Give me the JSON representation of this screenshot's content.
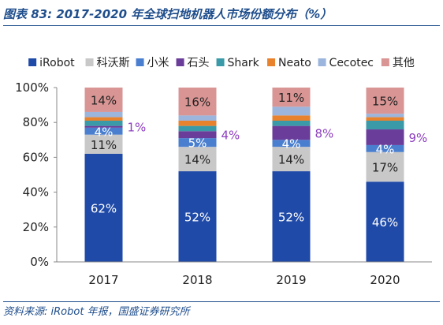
{
  "header": {
    "title": "图表 83:  2017-2020 年全球扫地机器人市场份额分布（%）"
  },
  "footer": {
    "source": "资料来源:  iRobot 年报，国盛证券研究所"
  },
  "chart_data": {
    "type": "bar",
    "stacked": true,
    "categories": [
      "2017",
      "2018",
      "2019",
      "2020"
    ],
    "ylim": [
      0,
      100
    ],
    "y_ticks": [
      "0%",
      "20%",
      "40%",
      "60%",
      "80%",
      "100%"
    ],
    "legend_position": "top",
    "series": [
      {
        "name": "iRobot",
        "color": "#1f4aa8",
        "values": [
          62,
          52,
          52,
          46
        ],
        "labels": [
          "62%",
          "52%",
          "52%",
          "46%"
        ],
        "label_color": "#ffffff",
        "label_side": "inside"
      },
      {
        "name": "科沃斯",
        "color": "#c8c8c8",
        "values": [
          11,
          14,
          14,
          17
        ],
        "labels": [
          "11%",
          "14%",
          "14%",
          "17%"
        ],
        "label_color": "#222222",
        "label_side": "inside"
      },
      {
        "name": "小米",
        "color": "#4a7fd0",
        "values": [
          4,
          5,
          4,
          4
        ],
        "labels": [
          "4%",
          "5%",
          "4%",
          "4%"
        ],
        "label_color": "#ffffff",
        "label_side": "inside"
      },
      {
        "name": "石头",
        "color": "#6a3d9a",
        "values": [
          1,
          4,
          8,
          9
        ],
        "labels": [
          "1%",
          "4%",
          "8%",
          "9%"
        ],
        "label_color": "#8e3fbf",
        "label_side": "outside"
      },
      {
        "name": "Shark",
        "color": "#3b9aa8",
        "values": [
          3,
          3,
          3,
          5
        ],
        "labels": [],
        "label_color": "#222222",
        "label_side": "none"
      },
      {
        "name": "Neato",
        "color": "#e8822c",
        "values": [
          2,
          3,
          3,
          2
        ],
        "labels": [],
        "label_color": "#222222",
        "label_side": "none"
      },
      {
        "name": "Cecotec",
        "color": "#9bb5dc",
        "values": [
          3,
          3,
          5,
          2
        ],
        "labels": [],
        "label_color": "#222222",
        "label_side": "none"
      },
      {
        "name": "其他",
        "color": "#d99594",
        "values": [
          14,
          16,
          11,
          15
        ],
        "labels": [
          "14%",
          "16%",
          "11%",
          "15%"
        ],
        "label_color": "#222222",
        "label_side": "inside"
      }
    ]
  }
}
